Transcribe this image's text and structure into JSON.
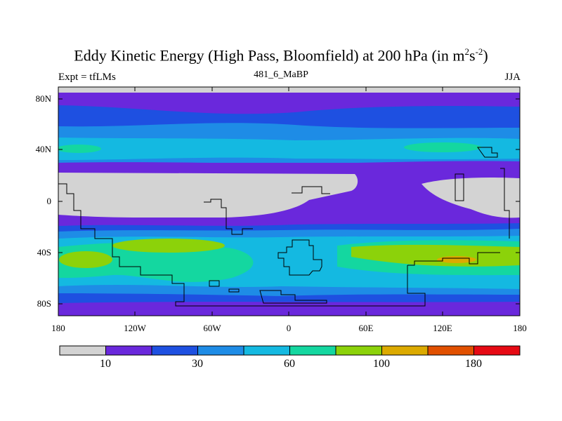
{
  "title": {
    "main": "Eddy Kinetic Energy (High Pass, Bloomfield) at 200 hPa (in m",
    "sup1": "2",
    "mid": "s",
    "sup2": "-2",
    "end": ")"
  },
  "subtitle": "481_6_MaBP",
  "left_label": "Expt = tfLMs",
  "right_label": "JJA",
  "lat_labels": [
    "80N",
    "40N",
    "0",
    "40S",
    "80S"
  ],
  "lon_labels": [
    "180",
    "120W",
    "60W",
    "0",
    "60E",
    "120E",
    "180"
  ],
  "colorbar": {
    "labels": [
      "10",
      "30",
      "60",
      "100",
      "180"
    ],
    "colors": [
      "#d3d3d3",
      "#6a28dc",
      "#1e50e1",
      "#1e8ce6",
      "#14b9e1",
      "#14d7a0",
      "#8cd20a",
      "#dcaa00",
      "#e15000",
      "#e60a14"
    ]
  },
  "chart_data": {
    "type": "heatmap",
    "title": "Eddy Kinetic Energy (High Pass, Bloomfield) at 200 hPa (in m^2s^-2)",
    "xlabel": "",
    "ylabel": "",
    "xlim": [
      -180,
      180
    ],
    "ylim": [
      -90,
      90
    ],
    "x_ticks": [
      "180",
      "120W",
      "60W",
      "0",
      "60E",
      "120E",
      "180"
    ],
    "y_ticks": [
      "80N",
      "40N",
      "0",
      "40S",
      "80S"
    ],
    "levels": [
      "10",
      "30",
      "60",
      "100",
      "180"
    ],
    "season": "JJA",
    "experiment": "tfLMs"
  }
}
